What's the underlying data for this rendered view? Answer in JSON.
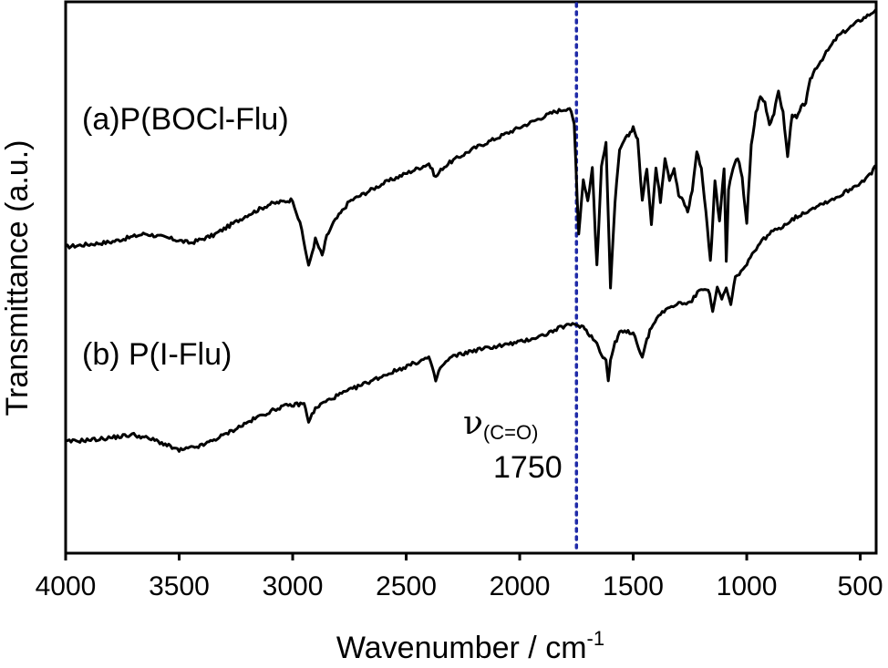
{
  "chart_data": {
    "type": "line",
    "title": "",
    "xlabel": "Wavenumber / cm",
    "xlabel_superscript": "-1",
    "ylabel": "Transmittance (a.u.)",
    "xlim": [
      4000,
      430
    ],
    "x_reversed": true,
    "ylim": [
      0,
      100
    ],
    "y_ticks_shown": false,
    "grid": false,
    "x_ticks": [
      4000,
      3500,
      3000,
      2500,
      2000,
      1500,
      1000,
      500
    ],
    "x_tick_labels": [
      "4000",
      "3500",
      "3000",
      "2500",
      "2000",
      "1500",
      "1000",
      "500"
    ],
    "series": [
      {
        "name": "(a)P(BOCl-Flu)",
        "label": "(a)P(BOCl-Flu)",
        "x": [
          4000,
          3800,
          3650,
          3550,
          3450,
          3350,
          3200,
          3100,
          3000,
          2960,
          2930,
          2900,
          2870,
          2850,
          2820,
          2750,
          2600,
          2400,
          2370,
          2340,
          2300,
          2200,
          2000,
          1850,
          1780,
          1760,
          1740,
          1720,
          1700,
          1680,
          1660,
          1640,
          1620,
          1600,
          1580,
          1560,
          1540,
          1520,
          1500,
          1480,
          1460,
          1440,
          1420,
          1400,
          1380,
          1360,
          1340,
          1320,
          1300,
          1280,
          1260,
          1240,
          1220,
          1200,
          1180,
          1160,
          1150,
          1140,
          1120,
          1100,
          1090,
          1080,
          1060,
          1040,
          1020,
          1000,
          980,
          960,
          940,
          920,
          900,
          880,
          860,
          840,
          820,
          800,
          780,
          760,
          740,
          720,
          700,
          650,
          600,
          550,
          500,
          460,
          430
        ],
        "y": [
          55.6,
          56.5,
          58.0,
          57.2,
          56.3,
          57.7,
          61.4,
          63.4,
          64.2,
          58.7,
          52.0,
          57.0,
          54.0,
          57.5,
          60.0,
          63.9,
          67.2,
          70.8,
          68.3,
          70.0,
          71.2,
          73.6,
          77.4,
          80.2,
          81.0,
          78.0,
          58.0,
          68.0,
          64.0,
          70.0,
          52.0,
          70.0,
          75.0,
          48.0,
          64.0,
          73.0,
          75.0,
          76.0,
          77.5,
          75.0,
          64.0,
          70.0,
          60.0,
          70.0,
          64.0,
          72.0,
          68.0,
          70.0,
          65.0,
          64.0,
          62.0,
          66.0,
          73.0,
          70.0,
          62.0,
          53.0,
          60.0,
          68.0,
          60.0,
          70.0,
          53.0,
          66.0,
          70.0,
          72.0,
          68.0,
          60.0,
          74.0,
          80.0,
          83.0,
          82.0,
          78.0,
          80.0,
          84.0,
          80.0,
          72.0,
          80.0,
          79.0,
          81.0,
          82.0,
          86.0,
          88.0,
          91.0,
          94.0,
          95.5,
          97.0,
          98.0,
          99.0
        ]
      },
      {
        "name": "(b) P(I-Flu)",
        "label": "(b) P(I-Flu)",
        "x": [
          4000,
          3850,
          3700,
          3600,
          3500,
          3400,
          3300,
          3150,
          3050,
          2950,
          2930,
          2900,
          2870,
          2800,
          2600,
          2400,
          2370,
          2350,
          2300,
          2200,
          2000,
          1900,
          1800,
          1750,
          1720,
          1700,
          1660,
          1640,
          1620,
          1610,
          1600,
          1580,
          1560,
          1500,
          1460,
          1440,
          1420,
          1380,
          1300,
          1250,
          1200,
          1170,
          1150,
          1130,
          1110,
          1090,
          1070,
          1050,
          1000,
          950,
          900,
          850,
          800,
          700,
          600,
          500,
          450,
          430
        ],
        "y": [
          20.0,
          20.5,
          21.3,
          20.2,
          18.4,
          19.3,
          21.3,
          24.6,
          26.4,
          27.0,
          23.8,
          26.0,
          27.0,
          28.5,
          32.1,
          35.4,
          31.2,
          33.5,
          35.5,
          36.7,
          38.2,
          39.4,
          41.2,
          41.4,
          41.0,
          40.0,
          38.0,
          36.0,
          35.0,
          31.0,
          35.0,
          38.0,
          40.0,
          40.0,
          35.5,
          38.5,
          41.0,
          43.5,
          45.3,
          45.4,
          48.0,
          48.0,
          44.0,
          48.0,
          46.0,
          48.0,
          45.0,
          50.0,
          52.3,
          56.0,
          58.0,
          59.2,
          60.6,
          62.9,
          64.7,
          67.3,
          69.0,
          70.5
        ]
      }
    ],
    "annotations": {
      "peak_symbol": "ν",
      "peak_subscript": "(C=O)",
      "peak_value": "1750",
      "peak_position_x": 1750,
      "peak_line_color": "#1f2aa8"
    }
  }
}
